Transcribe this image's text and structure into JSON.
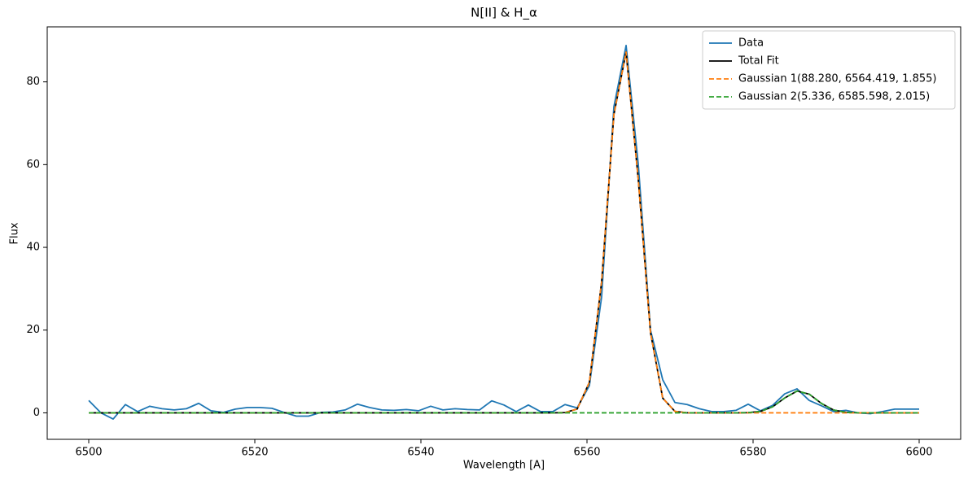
{
  "chart_data": {
    "type": "line",
    "title": "N[II] & H_α",
    "xlabel": "Wavelength [A]",
    "ylabel": "Flux",
    "x": [
      6500,
      6501.47,
      6502.94,
      6504.41,
      6505.88,
      6507.35,
      6508.82,
      6510.29,
      6511.76,
      6513.24,
      6514.71,
      6516.18,
      6517.65,
      6519.12,
      6520.59,
      6522.06,
      6523.53,
      6525,
      6526.47,
      6527.94,
      6529.41,
      6530.88,
      6532.35,
      6533.82,
      6535.29,
      6536.76,
      6538.24,
      6539.71,
      6541.18,
      6542.65,
      6544.12,
      6545.59,
      6547.06,
      6548.53,
      6550,
      6551.47,
      6552.94,
      6554.41,
      6555.88,
      6557.35,
      6558.82,
      6560.29,
      6561.76,
      6563.24,
      6564.71,
      6566.18,
      6567.65,
      6569.12,
      6570.59,
      6572.06,
      6573.53,
      6575,
      6576.47,
      6577.94,
      6579.41,
      6580.88,
      6582.35,
      6583.82,
      6585.29,
      6586.76,
      6588.24,
      6589.71,
      6591.18,
      6592.65,
      6594.12,
      6595.59,
      6597.06,
      6598.53,
      6600
    ],
    "series": [
      {
        "name": "Data",
        "color": "#1f77b4",
        "dash": false,
        "values": [
          3.0,
          0.0,
          -1.5,
          2.0,
          0.3,
          1.6,
          1.0,
          0.7,
          1.0,
          2.3,
          0.5,
          0.1,
          0.9,
          1.3,
          1.3,
          1.1,
          0.1,
          -0.8,
          -0.8,
          0.1,
          0.2,
          0.7,
          2.1,
          1.3,
          0.7,
          0.6,
          0.8,
          0.5,
          1.6,
          0.7,
          1.0,
          0.8,
          0.7,
          2.9,
          1.9,
          0.3,
          1.9,
          0.3,
          0.3,
          2.0,
          1.2,
          6.6,
          28,
          74,
          88.8,
          60,
          20,
          8,
          2.5,
          2.0,
          1.0,
          0.3,
          0.3,
          0.6,
          2.1,
          0.5,
          1.8,
          4.6,
          5.8,
          3.0,
          1.7,
          0.3,
          0.6,
          0.0,
          -0.2,
          0.3,
          0.9,
          0.9,
          0.9
        ]
      },
      {
        "name": "Total Fit",
        "color": "#000000",
        "dash": false,
        "values": [
          0,
          0,
          0,
          0,
          0,
          0,
          0,
          0,
          0,
          0,
          0,
          0,
          0,
          0,
          0,
          0,
          0,
          0,
          0,
          0,
          0,
          0,
          0,
          0,
          0,
          0,
          0,
          0,
          0,
          0,
          0,
          0,
          0,
          0,
          0,
          0,
          0,
          0,
          0,
          0.06,
          0.92,
          7.4,
          31.6,
          72.1,
          87.2,
          56.3,
          19.4,
          3.56,
          0.35,
          0.02,
          0,
          0,
          0,
          0,
          0.05,
          0.34,
          1.45,
          3.61,
          5.27,
          4.52,
          2.26,
          0.67,
          0.12,
          0.01,
          0,
          0,
          0,
          0,
          0
        ]
      },
      {
        "name": "Gaussian 1(88.280, 6564.419, 1.855)",
        "color": "#ff7f0e",
        "dash": true,
        "values": [
          0,
          0,
          0,
          0,
          0,
          0,
          0,
          0,
          0,
          0,
          0,
          0,
          0,
          0,
          0,
          0,
          0,
          0,
          0,
          0,
          0,
          0,
          0,
          0,
          0,
          0,
          0,
          0,
          0,
          0,
          0,
          0,
          0,
          0,
          0,
          0,
          0,
          0,
          0,
          0.06,
          0.92,
          7.4,
          31.6,
          72.1,
          87.2,
          56.3,
          19.4,
          3.56,
          0.35,
          0.02,
          0,
          0,
          0,
          0,
          0,
          0,
          0,
          0,
          0,
          0,
          0,
          0,
          0,
          0,
          0,
          0,
          0,
          0,
          0
        ]
      },
      {
        "name": "Gaussian 2(5.336, 6585.598, 2.015)",
        "color": "#2ca02c",
        "dash": true,
        "values": [
          0,
          0,
          0,
          0,
          0,
          0,
          0,
          0,
          0,
          0,
          0,
          0,
          0,
          0,
          0,
          0,
          0,
          0,
          0,
          0,
          0,
          0,
          0,
          0,
          0,
          0,
          0,
          0,
          0,
          0,
          0,
          0,
          0,
          0,
          0,
          0,
          0,
          0,
          0,
          0,
          0,
          0,
          0,
          0,
          0,
          0,
          0,
          0,
          0,
          0,
          0,
          0,
          0,
          0,
          0.05,
          0.34,
          1.45,
          3.61,
          5.27,
          4.52,
          2.26,
          0.67,
          0.12,
          0.01,
          0,
          0,
          0,
          0,
          0
        ]
      }
    ],
    "xlim": [
      6495,
      6605
    ],
    "ylim": [
      -6.4,
      93.3
    ],
    "xticks": [
      6500,
      6520,
      6540,
      6560,
      6580,
      6600
    ],
    "yticks": [
      0,
      20,
      40,
      60,
      80
    ],
    "grid": false,
    "legend": "upper right"
  }
}
